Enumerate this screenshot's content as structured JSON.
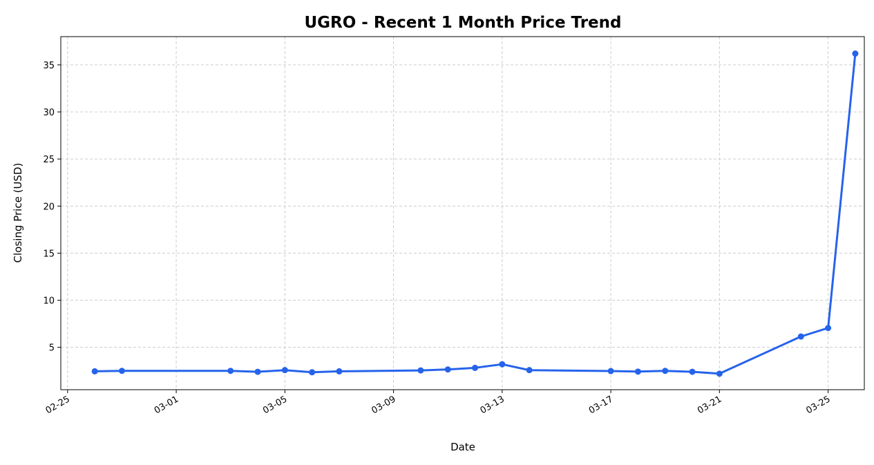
{
  "chart_data": {
    "type": "line",
    "title": "UGRO - Recent 1 Month Price Trend",
    "xlabel": "Date",
    "ylabel": "Closing Price (USD)",
    "x_tick_labels": [
      "02-25",
      "03-01",
      "03-05",
      "03-09",
      "03-13",
      "03-17",
      "03-21",
      "03-25"
    ],
    "x_tick_dates": [
      "2025-02-25",
      "2025-03-01",
      "2025-03-05",
      "2025-03-09",
      "2025-03-13",
      "2025-03-17",
      "2025-03-21",
      "2025-03-25"
    ],
    "xlim": [
      "2025-02-24T18:00",
      "2025-03-26T08:00"
    ],
    "y_ticks": [
      5,
      10,
      15,
      20,
      25,
      30,
      35
    ],
    "ylim": [
      0.5,
      38
    ],
    "grid": true,
    "line_color": "#2563eb",
    "x": [
      "2025-02-26",
      "2025-02-27",
      "2025-03-03",
      "2025-03-04",
      "2025-03-05",
      "2025-03-06",
      "2025-03-07",
      "2025-03-10",
      "2025-03-11",
      "2025-03-12",
      "2025-03-13",
      "2025-03-14",
      "2025-03-17",
      "2025-03-18",
      "2025-03-19",
      "2025-03-20",
      "2025-03-21",
      "2025-03-24",
      "2025-03-25",
      "2025-03-26"
    ],
    "values": [
      2.45,
      2.5,
      2.5,
      2.4,
      2.58,
      2.35,
      2.45,
      2.55,
      2.65,
      2.82,
      3.2,
      2.58,
      2.48,
      2.42,
      2.5,
      2.4,
      2.2,
      6.15,
      7.05,
      36.2
    ]
  }
}
